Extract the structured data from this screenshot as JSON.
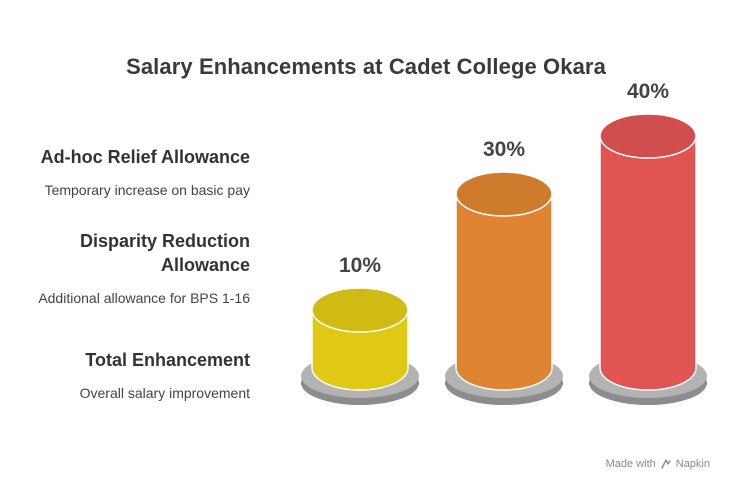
{
  "title": "Salary Enhancements at Cadet College Okara",
  "legend": [
    {
      "heading": "Ad-hoc Relief Allowance",
      "description": "Temporary increase on basic pay"
    },
    {
      "heading": "Disparity Reduction Allowance",
      "description": "Additional allowance for BPS 1-16"
    },
    {
      "heading": "Total Enhancement",
      "description": "Overall salary improvement"
    }
  ],
  "chart_data": {
    "type": "bar",
    "categories": [
      "",
      "",
      ""
    ],
    "values": [
      10,
      30,
      40
    ],
    "value_labels": [
      "10%",
      "30%",
      "40%"
    ],
    "colors": [
      "#e0c915",
      "#df8430",
      "#e05454"
    ],
    "ylim": [
      0,
      40
    ]
  },
  "brand": {
    "prefix": "Made with",
    "name": "Napkin"
  }
}
